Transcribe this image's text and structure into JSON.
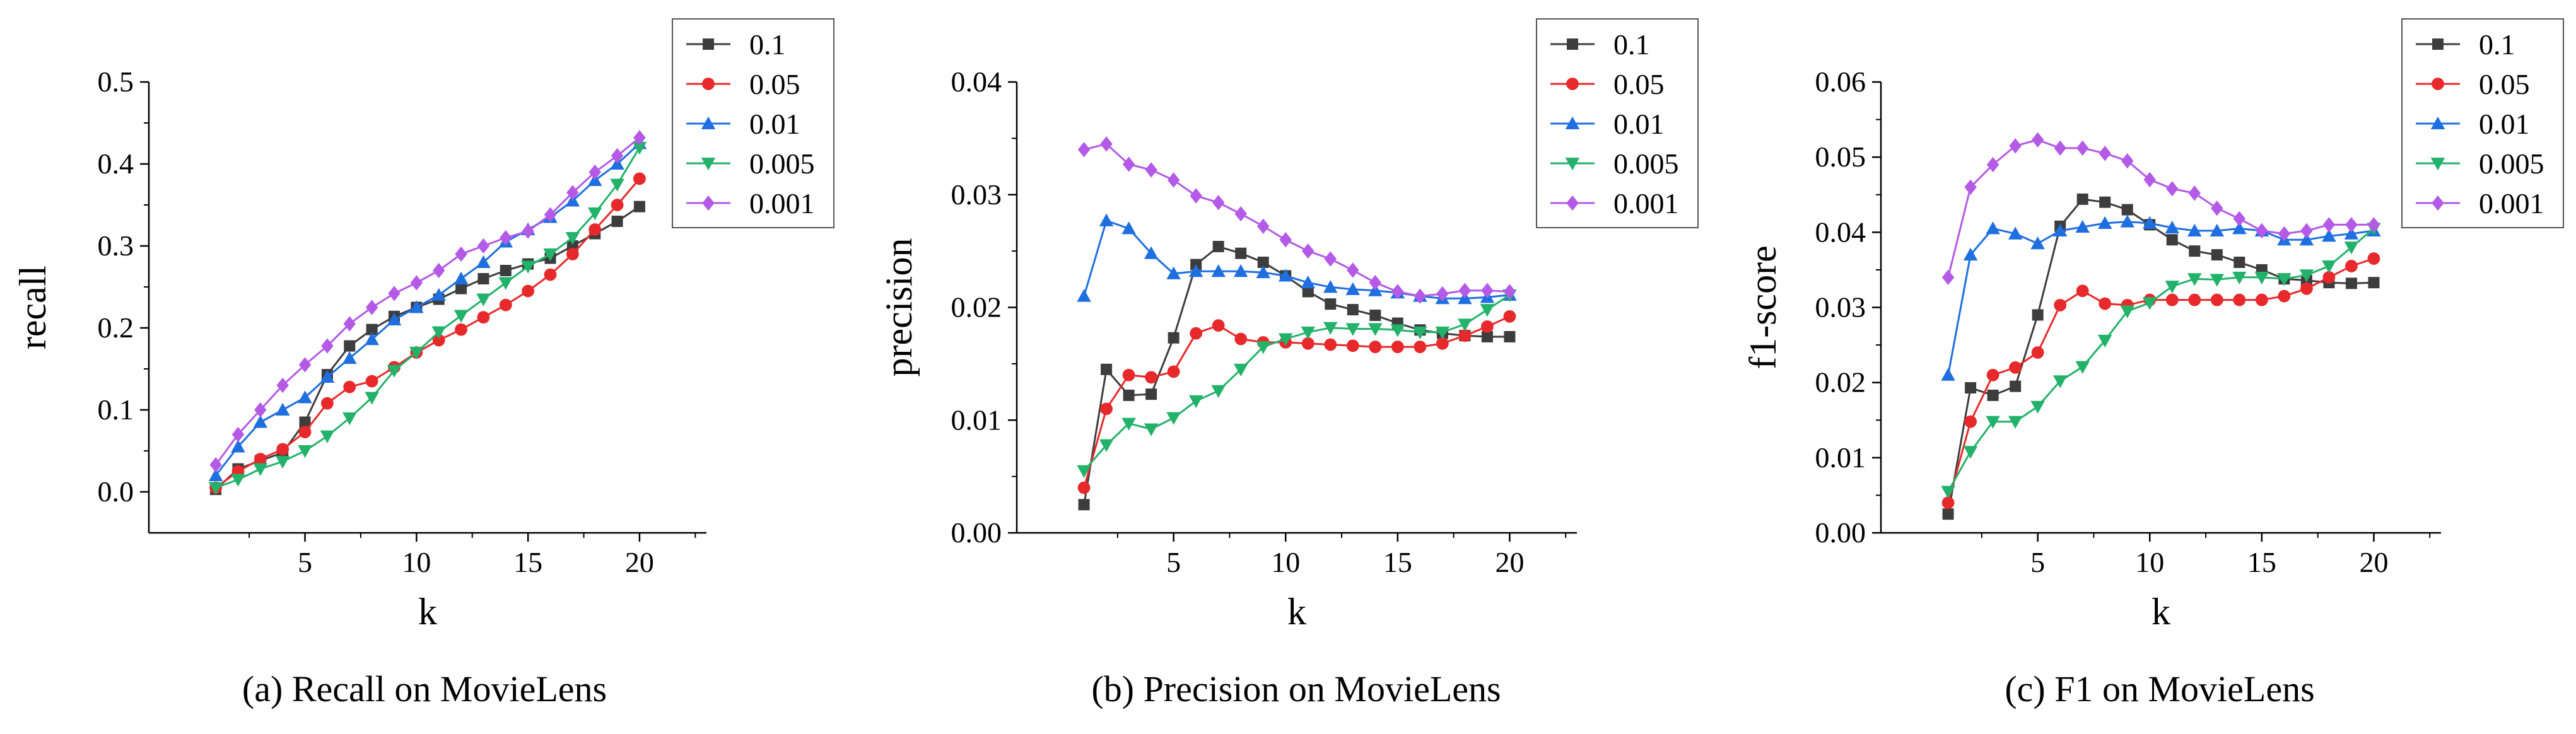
{
  "colors": {
    "0.1": "#3d3d3d",
    "0.05": "#e8292b",
    "0.01": "#1f6fe0",
    "0.005": "#23b26a",
    "0.001": "#b45ae6"
  },
  "markers": {
    "0.1": "square",
    "0.05": "circle",
    "0.01": "triangle-up",
    "0.005": "triangle-down",
    "0.001": "diamond"
  },
  "chart_data": [
    {
      "type": "line",
      "caption": "(a)  Recall on MovieLens",
      "xlabel": "k",
      "ylabel": "recall",
      "xlim": [
        -2,
        23
      ],
      "ylim": [
        -0.05,
        0.5
      ],
      "xticks": [
        "5",
        "10",
        "15",
        "20"
      ],
      "yticks": [
        "0.0",
        "0.1",
        "0.2",
        "0.3",
        "0.4",
        "0.5"
      ],
      "xtick_values": [
        5,
        10,
        15,
        20
      ],
      "ytick_values": [
        0.0,
        0.1,
        0.2,
        0.3,
        0.4,
        0.5
      ],
      "x": [
        1,
        2,
        3,
        4,
        5,
        6,
        7,
        8,
        9,
        10,
        11,
        12,
        13,
        14,
        15,
        16,
        17,
        18,
        19,
        20
      ],
      "series": [
        {
          "name": "0.1",
          "values": [
            0.003,
            0.028,
            0.038,
            0.048,
            0.085,
            0.143,
            0.178,
            0.198,
            0.214,
            0.225,
            0.235,
            0.248,
            0.26,
            0.27,
            0.278,
            0.285,
            0.3,
            0.315,
            0.33,
            0.348
          ]
        },
        {
          "name": "0.05",
          "values": [
            0.005,
            0.025,
            0.04,
            0.052,
            0.073,
            0.108,
            0.128,
            0.135,
            0.152,
            0.17,
            0.185,
            0.198,
            0.213,
            0.228,
            0.245,
            0.265,
            0.29,
            0.32,
            0.35,
            0.382
          ]
        },
        {
          "name": "0.01",
          "values": [
            0.02,
            0.055,
            0.085,
            0.1,
            0.115,
            0.14,
            0.163,
            0.186,
            0.21,
            0.225,
            0.24,
            0.26,
            0.28,
            0.305,
            0.32,
            0.335,
            0.355,
            0.38,
            0.4,
            0.425
          ]
        },
        {
          "name": "0.005",
          "values": [
            0.005,
            0.015,
            0.028,
            0.037,
            0.05,
            0.068,
            0.09,
            0.115,
            0.148,
            0.17,
            0.195,
            0.215,
            0.235,
            0.255,
            0.275,
            0.29,
            0.31,
            0.34,
            0.375,
            0.42
          ]
        },
        {
          "name": "0.001",
          "values": [
            0.033,
            0.07,
            0.1,
            0.13,
            0.155,
            0.178,
            0.205,
            0.225,
            0.242,
            0.255,
            0.27,
            0.29,
            0.3,
            0.31,
            0.318,
            0.338,
            0.365,
            0.39,
            0.41,
            0.432
          ]
        }
      ]
    },
    {
      "type": "line",
      "caption": "(b)  Precision on MovieLens",
      "xlabel": "k",
      "ylabel": "precision",
      "xlim": [
        -2,
        23
      ],
      "ylim": [
        0.0,
        0.04
      ],
      "xticks": [
        "5",
        "10",
        "15",
        "20"
      ],
      "yticks": [
        "0.00",
        "0.01",
        "0.02",
        "0.03",
        "0.04"
      ],
      "xtick_values": [
        5,
        10,
        15,
        20
      ],
      "ytick_values": [
        0.0,
        0.01,
        0.02,
        0.03,
        0.04
      ],
      "x": [
        1,
        2,
        3,
        4,
        5,
        6,
        7,
        8,
        9,
        10,
        11,
        12,
        13,
        14,
        15,
        16,
        17,
        18,
        19,
        20
      ],
      "series": [
        {
          "name": "0.1",
          "values": [
            0.0025,
            0.0145,
            0.0122,
            0.0123,
            0.0173,
            0.0238,
            0.0254,
            0.0248,
            0.024,
            0.0228,
            0.0214,
            0.0203,
            0.0198,
            0.0193,
            0.0186,
            0.018,
            0.0177,
            0.0175,
            0.0174,
            0.0174
          ]
        },
        {
          "name": "0.05",
          "values": [
            0.004,
            0.011,
            0.014,
            0.0138,
            0.0143,
            0.0177,
            0.0184,
            0.0172,
            0.0169,
            0.0169,
            0.0168,
            0.0167,
            0.0166,
            0.0165,
            0.0165,
            0.0165,
            0.0168,
            0.0175,
            0.0183,
            0.0192
          ]
        },
        {
          "name": "0.01",
          "values": [
            0.021,
            0.0277,
            0.027,
            0.0248,
            0.023,
            0.0232,
            0.0232,
            0.0232,
            0.0231,
            0.0228,
            0.0222,
            0.0218,
            0.0216,
            0.0215,
            0.0213,
            0.021,
            0.0208,
            0.0208,
            0.0209,
            0.0211
          ]
        },
        {
          "name": "0.005",
          "values": [
            0.0055,
            0.0078,
            0.0097,
            0.0092,
            0.0102,
            0.0117,
            0.0126,
            0.0145,
            0.0165,
            0.0172,
            0.0178,
            0.0182,
            0.0181,
            0.0181,
            0.018,
            0.0178,
            0.0178,
            0.0185,
            0.0198,
            0.0211
          ]
        },
        {
          "name": "0.001",
          "values": [
            0.034,
            0.0345,
            0.0327,
            0.0322,
            0.0313,
            0.0299,
            0.0293,
            0.0283,
            0.0272,
            0.026,
            0.025,
            0.0243,
            0.0233,
            0.0222,
            0.0214,
            0.021,
            0.0212,
            0.0215,
            0.0215,
            0.0214
          ]
        }
      ]
    },
    {
      "type": "line",
      "caption": "(c)  F1 on MovieLens",
      "xlabel": "k",
      "ylabel": "f1-score",
      "xlim": [
        -2,
        23
      ],
      "ylim": [
        0.0,
        0.06
      ],
      "xticks": [
        "5",
        "10",
        "15",
        "20"
      ],
      "yticks": [
        "0.00",
        "0.01",
        "0.02",
        "0.03",
        "0.04",
        "0.05",
        "0.06"
      ],
      "xtick_values": [
        5,
        10,
        15,
        20
      ],
      "ytick_values": [
        0.0,
        0.01,
        0.02,
        0.03,
        0.04,
        0.05,
        0.06
      ],
      "x": [
        1,
        2,
        3,
        4,
        5,
        6,
        7,
        8,
        9,
        10,
        11,
        12,
        13,
        14,
        15,
        16,
        17,
        18,
        19,
        20
      ],
      "series": [
        {
          "name": "0.1",
          "values": [
            0.0025,
            0.0193,
            0.0183,
            0.0195,
            0.029,
            0.0408,
            0.0444,
            0.044,
            0.043,
            0.041,
            0.039,
            0.0375,
            0.037,
            0.036,
            0.035,
            0.0338,
            0.0336,
            0.0333,
            0.0332,
            0.0333
          ]
        },
        {
          "name": "0.05",
          "values": [
            0.004,
            0.0148,
            0.021,
            0.022,
            0.024,
            0.0303,
            0.0322,
            0.0305,
            0.0303,
            0.031,
            0.031,
            0.031,
            0.031,
            0.031,
            0.031,
            0.0315,
            0.0325,
            0.034,
            0.0355,
            0.0365
          ]
        },
        {
          "name": "0.01",
          "values": [
            0.021,
            0.037,
            0.0405,
            0.0398,
            0.0385,
            0.0402,
            0.0407,
            0.0412,
            0.0414,
            0.0412,
            0.0406,
            0.0402,
            0.0402,
            0.0405,
            0.0402,
            0.039,
            0.039,
            0.0395,
            0.0398,
            0.0402
          ]
        },
        {
          "name": "0.005",
          "values": [
            0.0055,
            0.0108,
            0.0148,
            0.0148,
            0.0168,
            0.0202,
            0.0221,
            0.0256,
            0.0295,
            0.0306,
            0.0328,
            0.0338,
            0.0337,
            0.034,
            0.034,
            0.0338,
            0.0343,
            0.0355,
            0.038,
            0.0405
          ]
        },
        {
          "name": "0.001",
          "values": [
            0.034,
            0.046,
            0.049,
            0.0515,
            0.0523,
            0.0512,
            0.0512,
            0.0505,
            0.0495,
            0.047,
            0.0458,
            0.0452,
            0.0432,
            0.0418,
            0.0402,
            0.0398,
            0.0402,
            0.041,
            0.041,
            0.041
          ]
        }
      ]
    }
  ]
}
